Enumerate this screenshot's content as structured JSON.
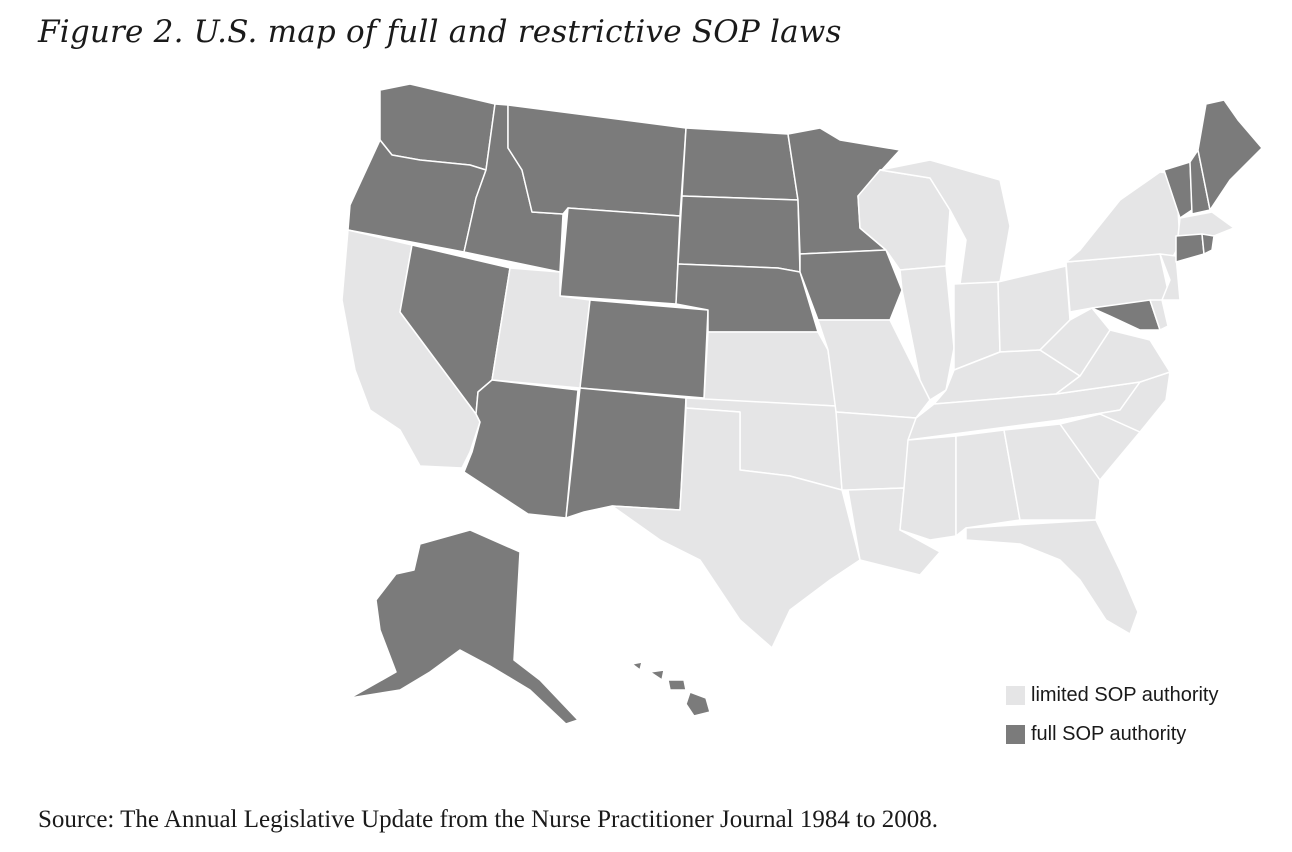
{
  "title": "Figure 2. U.S. map of full and restrictive SOP laws",
  "source": "Source: The Annual Legislative Update from the Nurse Practitioner Journal 1984 to 2008.",
  "colors": {
    "limited": "#e5e5e6",
    "full": "#7b7b7b",
    "border": "#ffffff"
  },
  "legend": [
    {
      "label": "limited SOP authority",
      "category": "limited"
    },
    {
      "label": "full SOP authority",
      "category": "full"
    }
  ],
  "states": {
    "full": [
      "WA",
      "OR",
      "ID",
      "MT",
      "WY",
      "NV",
      "CO",
      "AZ",
      "NM",
      "ND",
      "SD",
      "NE",
      "MN",
      "IA",
      "ME",
      "NH",
      "VT",
      "CT",
      "RI",
      "MD",
      "AK",
      "HI"
    ],
    "limited": [
      "CA",
      "UT",
      "TX",
      "OK",
      "KS",
      "MO",
      "AR",
      "LA",
      "WI",
      "IL",
      "MI",
      "IN",
      "OH",
      "KY",
      "TN",
      "MS",
      "AL",
      "GA",
      "FL",
      "SC",
      "NC",
      "VA",
      "WV",
      "PA",
      "NY",
      "NJ",
      "DE",
      "MA"
    ]
  }
}
